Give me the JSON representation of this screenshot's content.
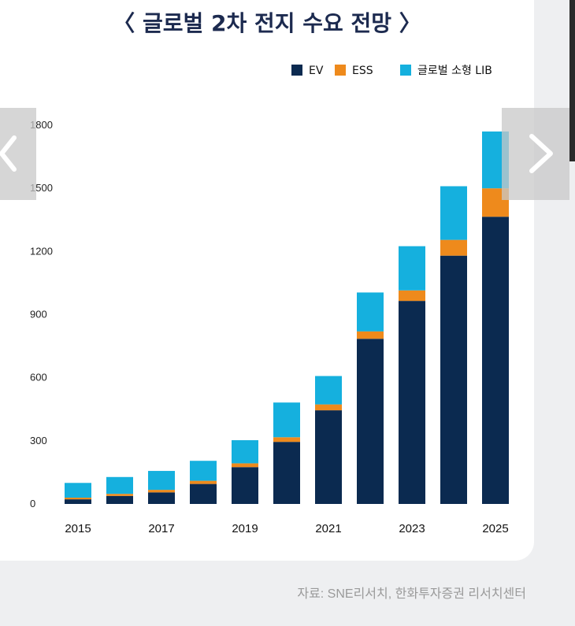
{
  "chart_data": {
    "type": "bar",
    "stacked": true,
    "title": "〈 글로벌 2차 전지 수요 전망 〉",
    "x": [
      2015,
      2016,
      2017,
      2018,
      2019,
      2020,
      2021,
      2022,
      2023,
      2024,
      2025
    ],
    "x_tick_labels": [
      "2015",
      "2017",
      "2019",
      "2021",
      "2023",
      "2025"
    ],
    "series": [
      {
        "name": "EV",
        "color": "#0b2a50",
        "values": [
          22,
          38,
          55,
          95,
          175,
          295,
          445,
          785,
          965,
          1180,
          1365
        ]
      },
      {
        "name": "ESS",
        "color": "#ee8a1c",
        "values": [
          8,
          10,
          12,
          15,
          18,
          22,
          28,
          35,
          50,
          75,
          135
        ]
      },
      {
        "name": "글로벌 소형 LIB",
        "color": "#15b0de",
        "values": [
          70,
          80,
          90,
          95,
          110,
          165,
          135,
          185,
          210,
          255,
          270
        ]
      }
    ],
    "y_ticks": [
      0,
      300,
      600,
      900,
      1200,
      1500,
      1800
    ],
    "ylim": [
      0,
      1800
    ],
    "grid": false,
    "legend_position": "top-right"
  },
  "source": "자료: SNE리서치, 한화투자증권 리서치센터"
}
